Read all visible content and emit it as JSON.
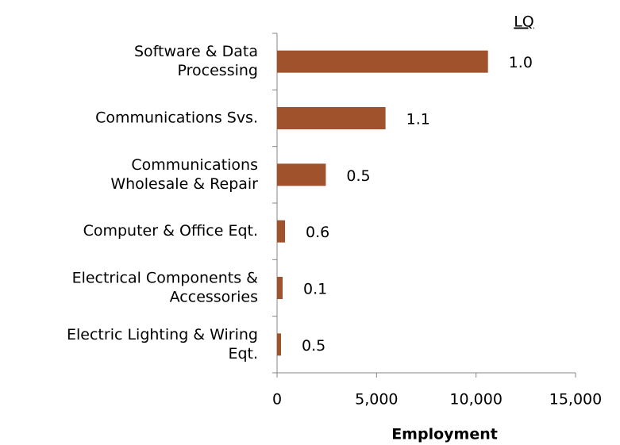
{
  "chart_data": {
    "type": "bar",
    "orientation": "horizontal",
    "categories": [
      [
        "Software & Data",
        "Processing"
      ],
      [
        "Communications Svs."
      ],
      [
        "Communications",
        "Wholesale & Repair"
      ],
      [
        "Computer & Office Eqt."
      ],
      [
        "Electrical Components &",
        "Accessories"
      ],
      [
        "Electric Lighting & Wiring",
        "Eqt."
      ]
    ],
    "values": [
      10600,
      5450,
      2450,
      400,
      280,
      200
    ],
    "color": "#a0522d",
    "lq_title": "LQ",
    "lq_labels": [
      "1.0",
      "1.1",
      "0.5",
      "0.6",
      "0.1",
      "0.5"
    ],
    "xlabel": "Employment",
    "xlim": [
      0,
      15000
    ],
    "xticks": [
      0,
      {
        "value": 5000,
        "label": "5,000"
      },
      {
        "value": 10000,
        "label": "10,000"
      },
      {
        "value": 15000,
        "label": "15,000"
      }
    ]
  }
}
